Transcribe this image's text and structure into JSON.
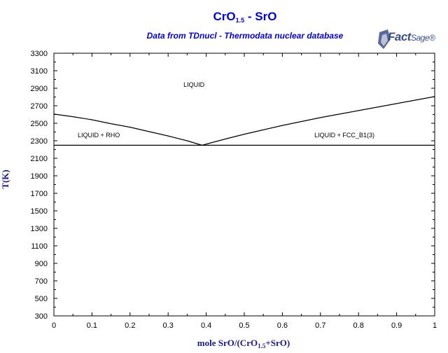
{
  "header": {
    "title_main": "CrO",
    "title_sub": "1.5",
    "title_rest": " - SrO",
    "subtitle": "Data from TDnucl - Thermodata nuclear database",
    "logo_fact": "Fact",
    "logo_sage": "Sage",
    "logo_tm": "®"
  },
  "colors": {
    "title": "#0000dd",
    "axis_label": "#1a1a8c",
    "line": "#000000",
    "logo_fact": "#3b4f8a"
  },
  "chart_data": {
    "type": "line",
    "xlim": [
      0,
      1
    ],
    "ylim": [
      300,
      3300
    ],
    "x_ticks": [
      "0",
      "0.1",
      "0.2",
      "0.3",
      "0.4",
      "0.5",
      "0.6",
      "0.7",
      "0.8",
      "0.9",
      "1"
    ],
    "y_ticks": [
      "300",
      "500",
      "700",
      "900",
      "1100",
      "1300",
      "1500",
      "1700",
      "1900",
      "2100",
      "2300",
      "2500",
      "2700",
      "2900",
      "3100",
      "3300"
    ],
    "xlabel_pre": "mole SrO/(CrO",
    "xlabel_sub": "1.5",
    "xlabel_post": "+SrO)",
    "ylabel": "T(K)",
    "grid": false,
    "series": [
      {
        "x": [
          0,
          0.05,
          0.1,
          0.15,
          0.2,
          0.25,
          0.3,
          0.35,
          0.389
        ],
        "y": [
          2605,
          2575,
          2540,
          2495,
          2455,
          2405,
          2355,
          2300,
          2249
        ]
      },
      {
        "x": [
          0.389,
          0.45,
          0.5,
          0.55,
          0.6,
          0.65,
          0.7,
          0.75,
          0.8,
          0.85,
          0.9,
          0.95,
          1
        ],
        "y": [
          2249,
          2320,
          2375,
          2425,
          2475,
          2520,
          2565,
          2605,
          2645,
          2685,
          2725,
          2765,
          2805
        ]
      },
      {
        "x": [
          0,
          1
        ],
        "y": [
          2249,
          2249
        ]
      }
    ],
    "annotations": [
      {
        "text": "LIQUID",
        "x": 0.368,
        "y": 2915
      },
      {
        "text": "LIQUID + RHO",
        "x": 0.118,
        "y": 2340
      },
      {
        "text": "LIQUID + FCC_B1(3)",
        "x": 0.763,
        "y": 2340
      }
    ]
  }
}
